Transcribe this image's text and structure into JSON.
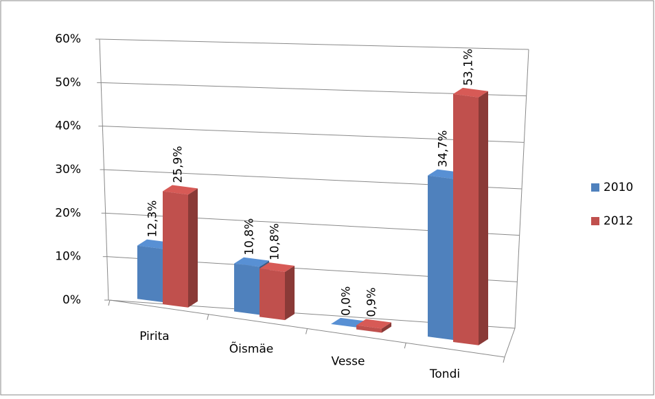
{
  "chart_data": {
    "type": "bar3d",
    "categories": [
      "Pirita",
      "Õismäe",
      "Vesse",
      "Tondi"
    ],
    "series": [
      {
        "name": "2010",
        "color": "#4f81bd",
        "values": [
          12.3,
          10.8,
          0.0,
          34.7
        ],
        "value_labels": [
          "12,3%",
          "10,8%",
          "0,0%",
          "34,7%"
        ]
      },
      {
        "name": "2012",
        "color": "#c0504d",
        "values": [
          25.9,
          10.8,
          0.9,
          53.1
        ],
        "value_labels": [
          "25,9%",
          "10,8%",
          "0,9%",
          "53,1%"
        ]
      }
    ],
    "ylim": [
      0,
      60
    ],
    "yticks": [
      {
        "value": 0,
        "label": "0%"
      },
      {
        "value": 10,
        "label": "10%"
      },
      {
        "value": 20,
        "label": "20%"
      },
      {
        "value": 30,
        "label": "30%"
      },
      {
        "value": 40,
        "label": "40%"
      },
      {
        "value": 50,
        "label": "50%"
      },
      {
        "value": 60,
        "label": "60%"
      }
    ],
    "grid": true,
    "legend": "right"
  }
}
